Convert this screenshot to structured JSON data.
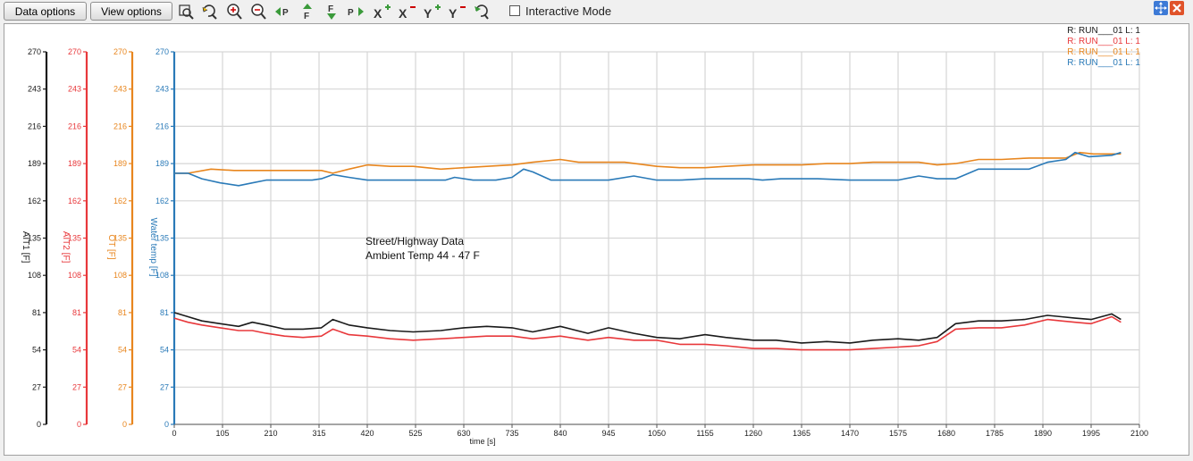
{
  "toolbar": {
    "data_options_label": "Data options",
    "view_options_label": "View options",
    "tools": [
      "zoom-region-icon",
      "zoom-refresh-icon",
      "zoom-in-icon",
      "zoom-out-icon",
      "pan-left-icon",
      "cursor-up-icon",
      "cursor-down-icon",
      "pan-right-icon",
      "x-zoom-in-icon",
      "x-zoom-out-icon",
      "y-zoom-in-icon",
      "y-zoom-out-icon",
      "reset-zoom-icon"
    ],
    "interactive_mode_label": "Interactive Mode",
    "interactive_mode_checked": false
  },
  "chart_data": {
    "type": "line",
    "title": "",
    "xlabel": "time [s]",
    "xlim": [
      0,
      2100
    ],
    "x_ticks": [
      0,
      105,
      210,
      315,
      420,
      525,
      630,
      735,
      840,
      945,
      1050,
      1155,
      1260,
      1365,
      1470,
      1575,
      1680,
      1785,
      1890,
      1995,
      2100
    ],
    "y_ticks": [
      0,
      27,
      54,
      81,
      108,
      135,
      162,
      189,
      216,
      243,
      270
    ],
    "ylim": [
      0,
      270
    ],
    "grid": true,
    "axes": [
      {
        "label": "AIT1 [F]",
        "color": "#1a1a1a"
      },
      {
        "label": "AIT2 [F]",
        "color": "#e8383b"
      },
      {
        "label": "OT [F]",
        "color": "#e8861e"
      },
      {
        "label": "Water temp [F]",
        "color": "#2a7ab8"
      }
    ],
    "legend": [
      {
        "text": "R: RUN___01  L: 1",
        "color": "#1a1a1a"
      },
      {
        "text": "R: RUN___01  L: 1",
        "color": "#e8383b"
      },
      {
        "text": "R: RUN___01  L: 1",
        "color": "#e8861e"
      },
      {
        "text": "R: RUN___01  L: 1",
        "color": "#2a7ab8"
      }
    ],
    "annotation": [
      "Street/Highway  Data",
      "Ambient Temp 44 - 47 F"
    ],
    "series": [
      {
        "color": "#1a1a1a",
        "x": [
          0,
          30,
          60,
          100,
          140,
          170,
          200,
          240,
          280,
          320,
          345,
          380,
          420,
          470,
          520,
          580,
          630,
          680,
          735,
          780,
          840,
          900,
          945,
          1000,
          1050,
          1100,
          1155,
          1200,
          1260,
          1310,
          1365,
          1420,
          1470,
          1520,
          1575,
          1620,
          1660,
          1700,
          1750,
          1800,
          1850,
          1900,
          1930,
          1960,
          1995,
          2040,
          2060
        ],
        "y": [
          81,
          78,
          75,
          73,
          71,
          74,
          72,
          69,
          69,
          70,
          76,
          72,
          70,
          68,
          67,
          68,
          70,
          71,
          70,
          67,
          71,
          66,
          70,
          66,
          63,
          62,
          65,
          63,
          61,
          61,
          59,
          60,
          59,
          61,
          62,
          61,
          63,
          73,
          75,
          75,
          76,
          79,
          78,
          77,
          76,
          80,
          76
        ]
      },
      {
        "color": "#e8383b",
        "x": [
          0,
          30,
          60,
          100,
          140,
          170,
          200,
          240,
          280,
          320,
          345,
          380,
          420,
          470,
          520,
          580,
          630,
          680,
          735,
          780,
          840,
          900,
          945,
          1000,
          1050,
          1100,
          1155,
          1200,
          1260,
          1310,
          1365,
          1420,
          1470,
          1520,
          1575,
          1620,
          1660,
          1700,
          1750,
          1800,
          1850,
          1900,
          1930,
          1960,
          1995,
          2040,
          2060
        ],
        "y": [
          77,
          74,
          72,
          70,
          68,
          68,
          66,
          64,
          63,
          64,
          69,
          65,
          64,
          62,
          61,
          62,
          63,
          64,
          64,
          62,
          64,
          61,
          63,
          61,
          61,
          58,
          58,
          57,
          55,
          55,
          54,
          54,
          54,
          55,
          56,
          57,
          60,
          69,
          70,
          70,
          72,
          76,
          75,
          74,
          73,
          78,
          74
        ]
      },
      {
        "color": "#e8861e",
        "x": [
          0,
          30,
          80,
          130,
          180,
          220,
          270,
          320,
          345,
          380,
          420,
          470,
          520,
          580,
          630,
          680,
          735,
          780,
          840,
          880,
          930,
          980,
          1050,
          1100,
          1155,
          1200,
          1260,
          1310,
          1365,
          1420,
          1470,
          1520,
          1575,
          1620,
          1660,
          1700,
          1750,
          1800,
          1860,
          1900,
          1940,
          1970,
          2000,
          2040,
          2060
        ],
        "y": [
          182,
          182,
          185,
          184,
          184,
          184,
          184,
          184,
          182,
          185,
          188,
          187,
          187,
          185,
          186,
          187,
          188,
          190,
          192,
          190,
          190,
          190,
          187,
          186,
          186,
          187,
          188,
          188,
          188,
          189,
          189,
          190,
          190,
          190,
          188,
          189,
          192,
          192,
          193,
          193,
          193,
          197,
          196,
          196,
          196
        ]
      },
      {
        "color": "#2a7ab8",
        "x": [
          0,
          30,
          60,
          100,
          140,
          170,
          200,
          260,
          300,
          320,
          345,
          380,
          420,
          500,
          590,
          610,
          650,
          700,
          735,
          760,
          780,
          820,
          900,
          945,
          1000,
          1050,
          1100,
          1155,
          1250,
          1280,
          1320,
          1400,
          1470,
          1520,
          1575,
          1620,
          1660,
          1700,
          1750,
          1800,
          1860,
          1900,
          1940,
          1960,
          1990,
          2040,
          2060
        ],
        "y": [
          182,
          182,
          178,
          175,
          173,
          175,
          177,
          177,
          177,
          178,
          181,
          179,
          177,
          177,
          177,
          179,
          177,
          177,
          179,
          185,
          183,
          177,
          177,
          177,
          180,
          177,
          177,
          178,
          178,
          177,
          178,
          178,
          177,
          177,
          177,
          180,
          178,
          178,
          185,
          185,
          185,
          190,
          192,
          197,
          194,
          195,
          197
        ]
      }
    ]
  }
}
